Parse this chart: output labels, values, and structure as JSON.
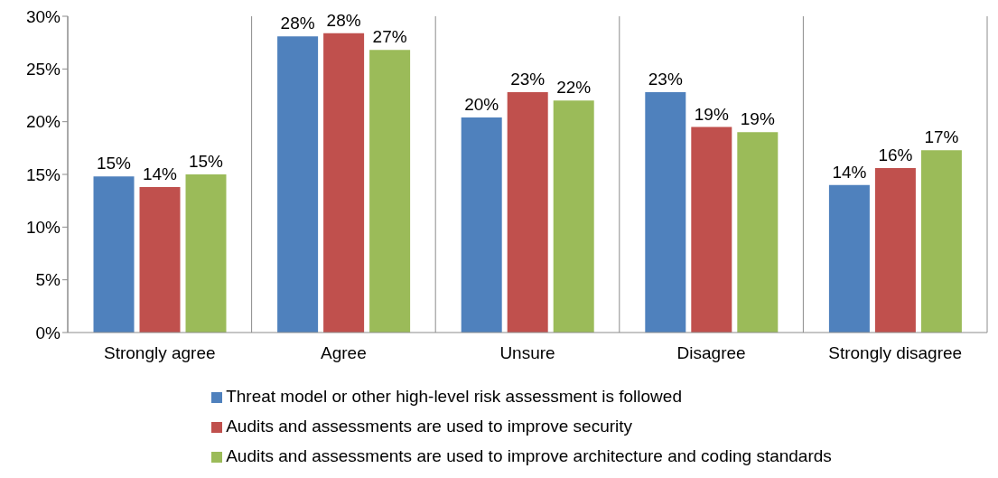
{
  "chart_data": {
    "type": "bar",
    "categories": [
      "Strongly agree",
      "Agree",
      "Unsure",
      "Disagree",
      "Strongly disagree"
    ],
    "series": [
      {
        "name": "Threat model or other high-level risk assessment is followed",
        "color": "#4f81bd",
        "values": [
          14.8,
          28.1,
          20.4,
          22.8,
          14.0
        ],
        "value_labels": [
          "15%",
          "28%",
          "20%",
          "23%",
          "14%"
        ]
      },
      {
        "name": "Audits and assessments are used to improve security",
        "color": "#c0504d",
        "values": [
          13.8,
          28.4,
          22.8,
          19.5,
          15.6
        ],
        "value_labels": [
          "14%",
          "28%",
          "23%",
          "19%",
          "16%"
        ]
      },
      {
        "name": "Audits and assessments are used to improve architecture and coding standards",
        "color": "#9bbb59",
        "values": [
          15.0,
          26.8,
          22.0,
          19.0,
          17.3
        ],
        "value_labels": [
          "15%",
          "27%",
          "22%",
          "19%",
          "17%"
        ]
      }
    ],
    "ylim": [
      0,
      30
    ],
    "yticks": [
      {
        "value": 0,
        "label": "0%"
      },
      {
        "value": 5,
        "label": "5%"
      },
      {
        "value": 10,
        "label": "10%"
      },
      {
        "value": 15,
        "label": "15%"
      },
      {
        "value": 20,
        "label": "20%"
      },
      {
        "value": 25,
        "label": "25%"
      },
      {
        "value": 30,
        "label": "30%"
      }
    ],
    "grid": "x",
    "legend": "bottom"
  }
}
